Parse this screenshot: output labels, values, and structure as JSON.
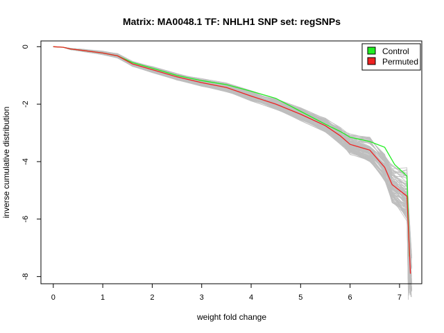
{
  "chart_data": {
    "type": "line",
    "title": "Matrix: MA0048.1 TF: NHLH1 SNP set: regSNPs",
    "xlabel": "weight fold change",
    "ylabel": "inverse cumulative distribution",
    "xlim": [
      -0.25,
      7.45
    ],
    "ylim": [
      -8.25,
      0.2
    ],
    "xticks": [
      0,
      1,
      2,
      3,
      4,
      5,
      6,
      7
    ],
    "yticks": [
      0,
      -2,
      -4,
      -6,
      -8
    ],
    "grid": false,
    "legend_position": "top-right",
    "legend": [
      {
        "label": "Control",
        "color": "#22ee22"
      },
      {
        "label": "Permuted",
        "color": "#ee2222"
      }
    ],
    "permuted_band": {
      "name": "permutation runs",
      "color": "#bebebe",
      "count": 100,
      "spread_y": [
        0.0,
        0.0,
        0.03,
        0.05,
        0.07,
        0.09,
        0.1,
        0.12,
        0.13,
        0.15,
        0.17,
        0.2,
        0.22,
        0.25,
        0.3,
        0.35,
        0.4,
        0.5,
        0.6,
        0.8,
        1.1
      ]
    },
    "series": [
      {
        "name": "Control",
        "color": "#22ee22",
        "x": [
          0.0,
          0.2,
          0.35,
          0.6,
          1.0,
          1.3,
          1.6,
          2.0,
          2.5,
          3.0,
          3.5,
          4.0,
          4.5,
          5.0,
          5.5,
          5.8,
          6.0,
          6.4,
          6.7,
          6.9,
          7.15,
          7.2
        ],
        "y": [
          0.0,
          -0.02,
          -0.08,
          -0.13,
          -0.22,
          -0.32,
          -0.55,
          -0.75,
          -1.0,
          -1.18,
          -1.32,
          -1.55,
          -1.8,
          -2.25,
          -2.7,
          -2.95,
          -3.15,
          -3.3,
          -3.5,
          -4.1,
          -4.5,
          -7.3
        ]
      },
      {
        "name": "Permuted",
        "color": "#ee2222",
        "x": [
          0.0,
          0.2,
          0.35,
          0.6,
          1.0,
          1.3,
          1.6,
          2.0,
          2.5,
          3.0,
          3.5,
          4.0,
          4.5,
          5.0,
          5.5,
          5.8,
          6.0,
          6.4,
          6.7,
          6.85,
          7.15,
          7.22
        ],
        "y": [
          0.0,
          -0.02,
          -0.08,
          -0.13,
          -0.22,
          -0.32,
          -0.6,
          -0.8,
          -1.05,
          -1.25,
          -1.42,
          -1.72,
          -2.0,
          -2.35,
          -2.75,
          -3.1,
          -3.4,
          -3.6,
          -4.2,
          -4.8,
          -5.2,
          -7.9
        ]
      }
    ]
  }
}
